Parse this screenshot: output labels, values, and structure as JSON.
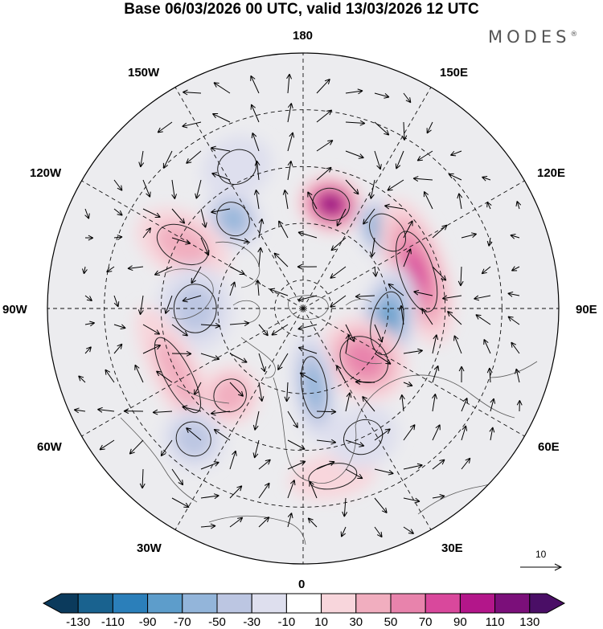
{
  "title": "Base 06/03/2026 00 UTC, valid 13/03/2026 12 UTC",
  "brand": {
    "name": "MODES",
    "mark": "®"
  },
  "longitude_labels": {
    "deg0": "0",
    "deg30e": "30E",
    "deg60e": "60E",
    "deg90e": "90E",
    "deg120e": "120E",
    "deg150e": "150E",
    "deg180": "180",
    "deg150w": "150W",
    "deg120w": "120W",
    "deg90w": "90W",
    "deg60w": "60W",
    "deg30w": "30W"
  },
  "vector_scale": {
    "label": "10"
  },
  "colorbar": {
    "labels": [
      "-130",
      "-110",
      "-90",
      "-70",
      "-50",
      "-30",
      "-10",
      "10",
      "30",
      "50",
      "70",
      "90",
      "110",
      "130"
    ],
    "colors": [
      "#0b3a5c",
      "#19628f",
      "#2b7fba",
      "#5d9dcb",
      "#93b5da",
      "#bcc6e2",
      "#dedfee",
      "#ffffff",
      "#f8d6dc",
      "#f1aebf",
      "#e883ac",
      "#d9489c",
      "#b3168a",
      "#7b0f7a",
      "#4a0e66"
    ]
  },
  "anomaly_centers": [
    {
      "lon": 165,
      "lat": 52,
      "value": 120,
      "rx": 42,
      "ry": 36
    },
    {
      "lon": 132,
      "lat": 50,
      "value": -95,
      "rx": 48,
      "ry": 34
    },
    {
      "lon": 108,
      "lat": 48,
      "value": 72,
      "rx": 95,
      "ry": 38
    },
    {
      "lon": 80,
      "lat": 60,
      "value": -80,
      "rx": 72,
      "ry": 36
    },
    {
      "lon": 50,
      "lat": 62,
      "value": 62,
      "rx": 48,
      "ry": 58
    },
    {
      "lon": 8,
      "lat": 62,
      "value": -58,
      "rx": 28,
      "ry": 70
    },
    {
      "lon": -142,
      "lat": 50,
      "value": -55,
      "rx": 35,
      "ry": 40
    },
    {
      "lon": -118,
      "lat": 42,
      "value": 38,
      "rx": 40,
      "ry": 62
    },
    {
      "lon": -90,
      "lat": 52,
      "value": -35,
      "rx": 55,
      "ry": 48
    },
    {
      "lon": -62,
      "lat": 40,
      "value": 35,
      "rx": 95,
      "ry": 30
    },
    {
      "lon": -40,
      "lat": 50,
      "value": 42,
      "rx": 36,
      "ry": 38
    },
    {
      "lon": -40,
      "lat": 30,
      "value": -40,
      "rx": 40,
      "ry": 38
    },
    {
      "lon": 10,
      "lat": 30,
      "value": 28,
      "rx": 55,
      "ry": 28
    },
    {
      "lon": -155,
      "lat": 35,
      "value": -25,
      "rx": 45,
      "ry": 38
    },
    {
      "lon": 25,
      "lat": 40,
      "value": -22,
      "rx": 45,
      "ry": 38
    }
  ]
}
